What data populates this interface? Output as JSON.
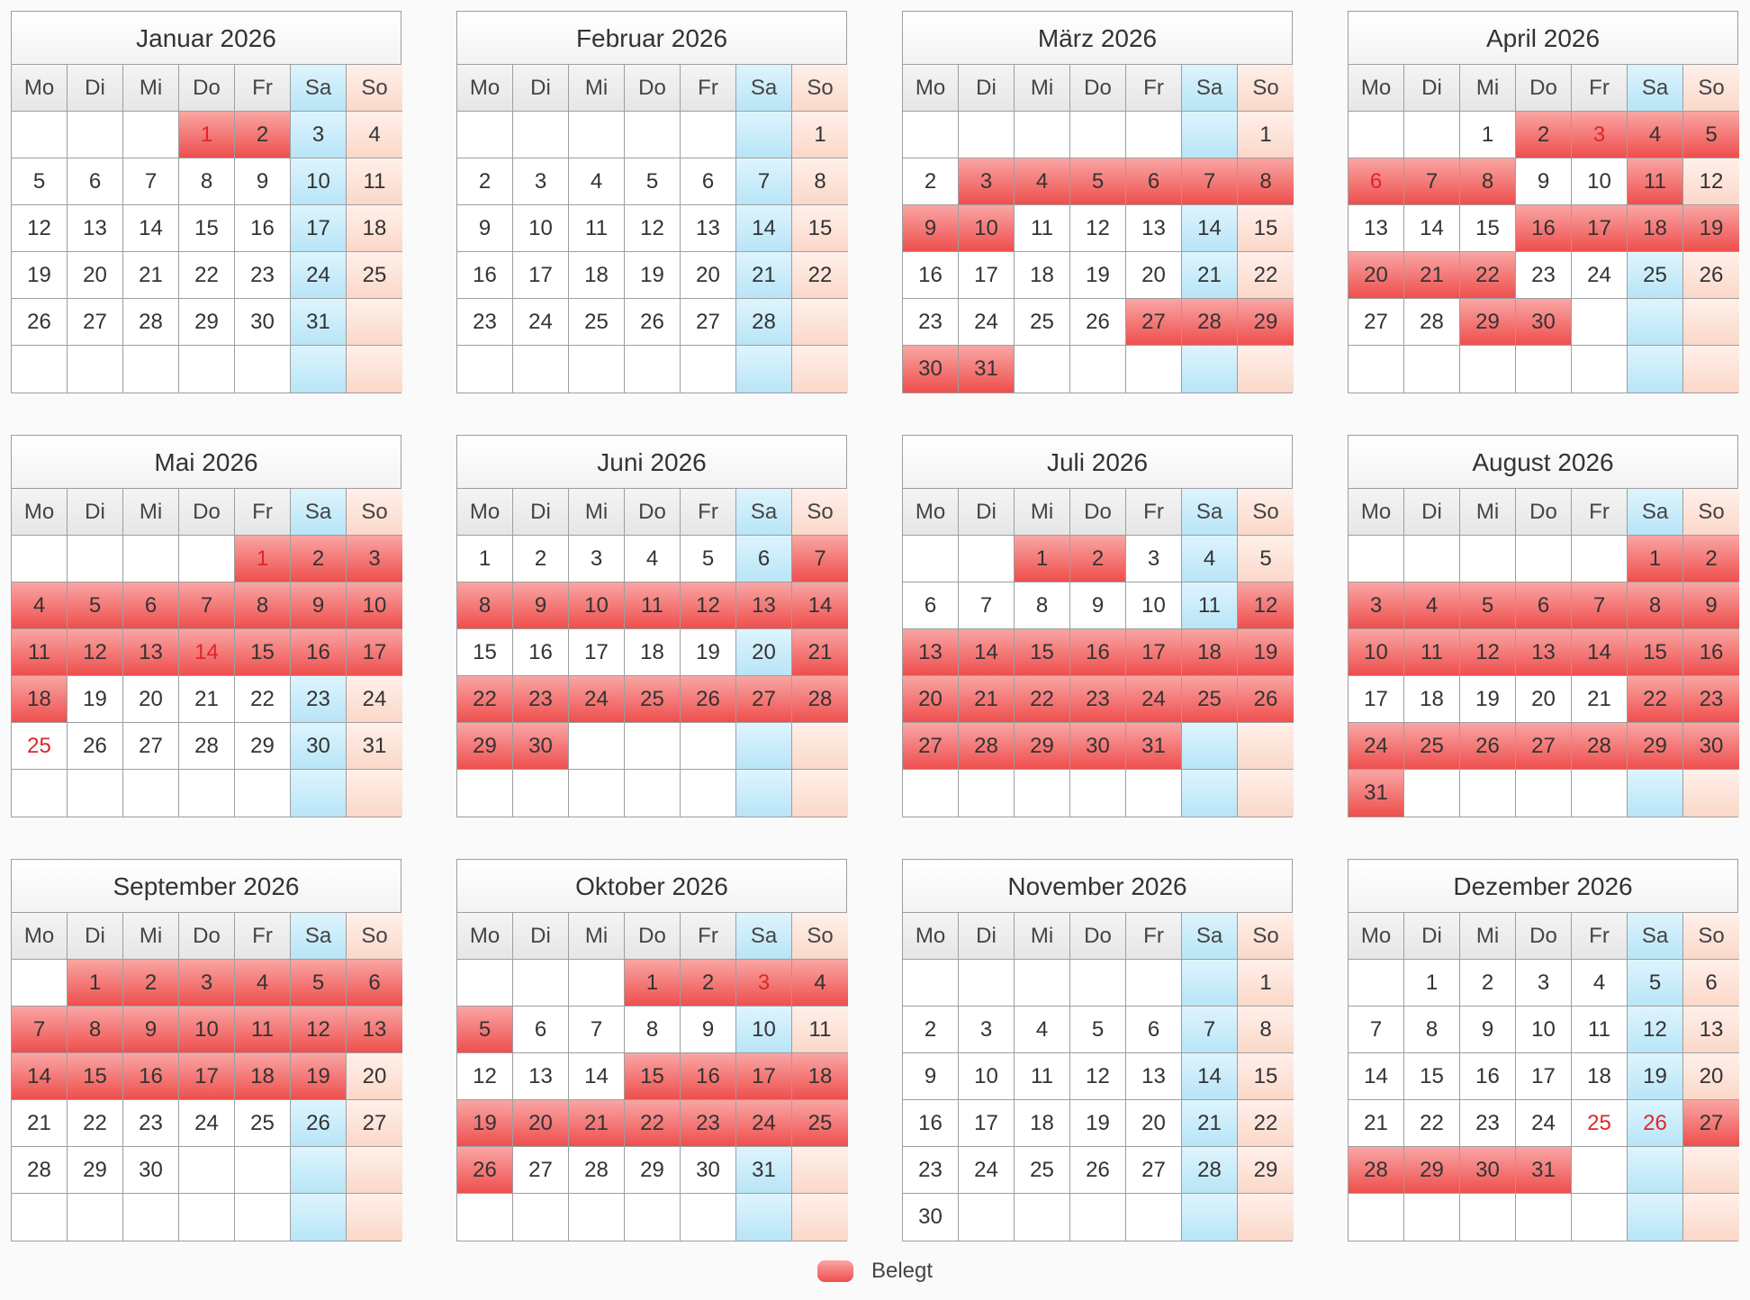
{
  "weekdays": [
    "Mo",
    "Di",
    "Mi",
    "Do",
    "Fr",
    "Sa",
    "So"
  ],
  "legend": {
    "label": "Belegt",
    "color": "#ee4f4d"
  },
  "colors": {
    "booked": "#ee4f4d",
    "saturday": "#b8e5f7",
    "sunday": "#fbd8c9",
    "holiday_text": "#e0262b"
  },
  "months": [
    {
      "title": "Januar 2026",
      "start_weekday": 4,
      "days": 31,
      "booked": [
        1,
        2
      ],
      "holidays": [
        1
      ]
    },
    {
      "title": "Februar 2026",
      "start_weekday": 7,
      "days": 28,
      "booked": [],
      "holidays": []
    },
    {
      "title": "März 2026",
      "start_weekday": 7,
      "days": 31,
      "booked": [
        3,
        4,
        5,
        6,
        7,
        8,
        9,
        10,
        27,
        28,
        29,
        30,
        31
      ],
      "holidays": []
    },
    {
      "title": "April 2026",
      "start_weekday": 3,
      "days": 30,
      "booked": [
        2,
        3,
        4,
        5,
        6,
        7,
        8,
        11,
        16,
        17,
        18,
        19,
        20,
        21,
        22,
        29,
        30
      ],
      "holidays": [
        3,
        6
      ]
    },
    {
      "title": "Mai 2026",
      "start_weekday": 5,
      "days": 31,
      "booked": [
        1,
        2,
        3,
        4,
        5,
        6,
        7,
        8,
        9,
        10,
        11,
        12,
        13,
        14,
        15,
        16,
        17,
        18
      ],
      "holidays": [
        1,
        14,
        25
      ]
    },
    {
      "title": "Juni 2026",
      "start_weekday": 1,
      "days": 30,
      "booked": [
        7,
        8,
        9,
        10,
        11,
        12,
        13,
        14,
        21,
        22,
        23,
        24,
        25,
        26,
        27,
        28,
        29,
        30
      ],
      "holidays": []
    },
    {
      "title": "Juli 2026",
      "start_weekday": 3,
      "days": 31,
      "booked": [
        1,
        2,
        12,
        13,
        14,
        15,
        16,
        17,
        18,
        19,
        20,
        21,
        22,
        23,
        24,
        25,
        26,
        27,
        28,
        29,
        30,
        31
      ],
      "holidays": []
    },
    {
      "title": "August 2026",
      "start_weekday": 6,
      "days": 31,
      "booked": [
        1,
        2,
        3,
        4,
        5,
        6,
        7,
        8,
        9,
        10,
        11,
        12,
        13,
        14,
        15,
        16,
        22,
        23,
        24,
        25,
        26,
        27,
        28,
        29,
        30,
        31
      ],
      "holidays": []
    },
    {
      "title": "September 2026",
      "start_weekday": 2,
      "days": 30,
      "booked": [
        1,
        2,
        3,
        4,
        5,
        6,
        7,
        8,
        9,
        10,
        11,
        12,
        13,
        14,
        15,
        16,
        17,
        18,
        19
      ],
      "holidays": []
    },
    {
      "title": "Oktober 2026",
      "start_weekday": 4,
      "days": 31,
      "booked": [
        1,
        2,
        3,
        4,
        5,
        15,
        16,
        17,
        18,
        19,
        20,
        21,
        22,
        23,
        24,
        25,
        26
      ],
      "holidays": [
        3
      ]
    },
    {
      "title": "November 2026",
      "start_weekday": 7,
      "days": 30,
      "booked": [],
      "holidays": []
    },
    {
      "title": "Dezember 2026",
      "start_weekday": 2,
      "days": 31,
      "booked": [
        27,
        28,
        29,
        30,
        31
      ],
      "holidays": [
        25,
        26
      ]
    }
  ]
}
